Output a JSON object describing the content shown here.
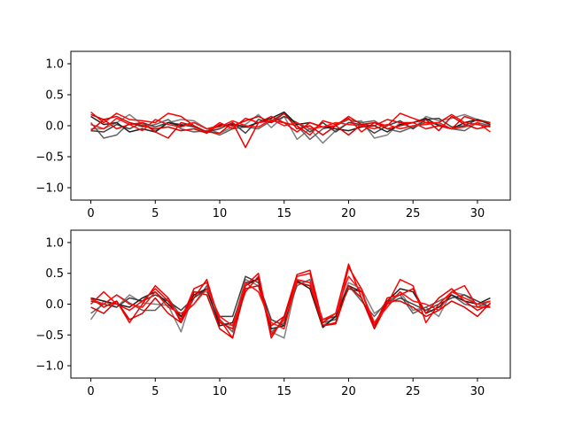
{
  "chart_data": [
    {
      "type": "line",
      "xlim": [
        -1.55,
        32.55
      ],
      "ylim": [
        -1.2,
        1.2
      ],
      "xticks": [
        0,
        5,
        10,
        15,
        20,
        25,
        30
      ],
      "xtick_labels": [
        "0",
        "5",
        "10",
        "15",
        "20",
        "25",
        "30"
      ],
      "yticks": [
        -1.0,
        -0.5,
        0.0,
        0.5,
        1.0
      ],
      "ytick_labels": [
        "−1.0",
        "−0.5",
        "0.0",
        "0.5",
        "1.0"
      ],
      "grid": false,
      "series": [
        {
          "color": "#808080",
          "values": [
            -0.05,
            -0.05,
            0.05,
            0.18,
            0.02,
            -0.08,
            0.05,
            0.1,
            0.08,
            -0.05,
            -0.12,
            -0.02,
            0.02,
            0.18,
            -0.03,
            0.15,
            -0.22,
            -0.05,
            -0.28,
            -0.08,
            0.05,
            0.08,
            -0.2,
            -0.15,
            0.05,
            -0.05,
            0.15,
            0.08,
            0.12,
            0.18,
            0.1,
            0.02
          ]
        },
        {
          "color": "#606060",
          "values": [
            0.05,
            -0.2,
            -0.15,
            0.05,
            -0.02,
            0.02,
            0.1,
            -0.05,
            -0.1,
            -0.08,
            -0.15,
            -0.05,
            -0.02,
            -0.05,
            0.08,
            0.2,
            0.0,
            -0.22,
            -0.05,
            0.0,
            0.1,
            0.05,
            0.08,
            -0.05,
            -0.1,
            -0.02,
            0.05,
            0.02,
            -0.05,
            -0.08,
            0.05,
            0.0
          ]
        },
        {
          "color": "#404040",
          "values": [
            -0.08,
            -0.1,
            0.02,
            -0.05,
            0.05,
            -0.02,
            0.05,
            0.02,
            -0.02,
            -0.1,
            -0.05,
            0.05,
            -0.12,
            0.1,
            0.05,
            0.15,
            0.05,
            -0.1,
            0.05,
            -0.1,
            0.05,
            0.02,
            -0.12,
            0.0,
            0.08,
            -0.05,
            0.1,
            0.12,
            -0.02,
            0.0,
            0.1,
            0.05
          ]
        },
        {
          "color": "#202020",
          "values": [
            0.15,
            0.02,
            0.05,
            -0.1,
            -0.05,
            -0.1,
            0.05,
            0.0,
            0.05,
            -0.05,
            0.0,
            0.02,
            -0.02,
            0.05,
            0.12,
            0.22,
            0.02,
            0.05,
            -0.02,
            -0.05,
            -0.08,
            -0.02,
            0.0,
            -0.1,
            0.02,
            0.05,
            0.12,
            0.0,
            -0.05,
            0.05,
            0.1,
            0.02
          ]
        },
        {
          "color": "#ff0000",
          "values": [
            0.22,
            0.05,
            0.2,
            0.1,
            0.08,
            0.05,
            0.2,
            0.15,
            0.0,
            -0.1,
            0.05,
            -0.05,
            0.12,
            0.05,
            0.08,
            0.05,
            0.0,
            -0.15,
            0.08,
            0.02,
            0.12,
            -0.1,
            0.05,
            0.0,
            0.2,
            0.12,
            0.05,
            0.05,
            0.18,
            0.05,
            0.02,
            -0.02
          ]
        },
        {
          "color": "#ee0000",
          "values": [
            -0.08,
            0.1,
            -0.05,
            0.02,
            0.05,
            -0.1,
            -0.2,
            0.05,
            0.0,
            -0.1,
            -0.12,
            0.05,
            -0.35,
            0.05,
            0.15,
            0.05,
            -0.1,
            0.05,
            -0.02,
            0.0,
            0.15,
            0.02,
            0.0,
            0.1,
            0.05,
            0.05,
            -0.05,
            0.0,
            -0.05,
            0.15,
            0.08,
            0.05
          ]
        },
        {
          "color": "#dd0000",
          "values": [
            0.18,
            0.1,
            0.15,
            0.05,
            0.0,
            -0.05,
            -0.02,
            -0.08,
            -0.05,
            -0.12,
            0.02,
            0.0,
            0.08,
            0.15,
            0.05,
            0.2,
            -0.05,
            0.0,
            -0.15,
            0.0,
            -0.15,
            0.02,
            0.05,
            -0.05,
            0.0,
            0.05,
            0.1,
            -0.08,
            0.15,
            0.02,
            -0.05,
            0.0
          ]
        },
        {
          "color": "#ff1010",
          "values": [
            0.02,
            -0.05,
            0.12,
            0.02,
            -0.08,
            0.1,
            0.02,
            -0.02,
            0.05,
            -0.05,
            -0.02,
            0.08,
            0.0,
            -0.02,
            0.1,
            0.0,
            0.05,
            -0.05,
            -0.02,
            0.05,
            0.02,
            0.0,
            -0.05,
            0.02,
            -0.05,
            0.0,
            0.02,
            0.05,
            -0.05,
            -0.02,
            0.05,
            -0.1
          ]
        }
      ]
    },
    {
      "type": "line",
      "xlim": [
        -1.55,
        32.55
      ],
      "ylim": [
        -1.2,
        1.2
      ],
      "xticks": [
        0,
        5,
        10,
        15,
        20,
        25,
        30
      ],
      "xtick_labels": [
        "0",
        "5",
        "10",
        "15",
        "20",
        "25",
        "30"
      ],
      "yticks": [
        -1.0,
        -0.5,
        0.0,
        0.5,
        1.0
      ],
      "ytick_labels": [
        "−1.0",
        "−0.5",
        "0.0",
        "0.5",
        "1.0"
      ],
      "grid": false,
      "series": [
        {
          "color": "#808080",
          "values": [
            -0.25,
            0.05,
            -0.05,
            0.15,
            0.02,
            0.0,
            -0.02,
            -0.45,
            0.2,
            0.2,
            -0.3,
            -0.35,
            0.4,
            0.3,
            -0.45,
            -0.55,
            0.38,
            0.35,
            -0.35,
            -0.2,
            0.35,
            0.25,
            -0.15,
            0.0,
            0.2,
            -0.1,
            -0.05,
            -0.2,
            0.2,
            0.15,
            0.0,
            -0.05
          ]
        },
        {
          "color": "#606060",
          "values": [
            -0.15,
            0.0,
            0.15,
            0.02,
            -0.1,
            -0.1,
            0.1,
            -0.2,
            0.0,
            0.3,
            -0.25,
            -0.45,
            0.35,
            0.4,
            -0.45,
            -0.3,
            0.3,
            0.4,
            -0.3,
            -0.25,
            0.3,
            0.05,
            -0.2,
            0.05,
            0.15,
            -0.15,
            -0.05,
            0.05,
            0.15,
            0.0,
            -0.05,
            0.05
          ]
        },
        {
          "color": "#404040",
          "values": [
            0.05,
            0.0,
            -0.05,
            0.1,
            0.05,
            0.15,
            0.05,
            -0.1,
            0.1,
            0.25,
            -0.2,
            -0.2,
            0.45,
            0.35,
            -0.25,
            -0.35,
            0.35,
            0.3,
            -0.25,
            -0.2,
            0.25,
            0.2,
            -0.3,
            0.0,
            0.1,
            0.0,
            -0.1,
            0.0,
            0.1,
            0.15,
            0.05,
            -0.05
          ]
        },
        {
          "color": "#202020",
          "values": [
            0.1,
            0.05,
            0.0,
            -0.05,
            0.1,
            0.2,
            0.0,
            -0.2,
            0.15,
            0.25,
            -0.35,
            -0.3,
            0.3,
            0.42,
            -0.4,
            -0.35,
            0.38,
            0.25,
            -0.38,
            -0.2,
            0.3,
            0.2,
            -0.35,
            0.05,
            0.25,
            0.2,
            -0.15,
            -0.05,
            0.15,
            0.05,
            0.0,
            0.1
          ]
        },
        {
          "color": "#ff0000",
          "values": [
            0.0,
            0.2,
            0.0,
            -0.1,
            0.05,
            0.25,
            0.05,
            -0.25,
            0.25,
            0.35,
            -0.25,
            -0.55,
            0.3,
            0.5,
            -0.5,
            -0.25,
            0.45,
            0.5,
            -0.35,
            -0.3,
            0.6,
            0.25,
            -0.4,
            0.0,
            0.4,
            0.3,
            -0.3,
            0.0,
            0.2,
            0.3,
            -0.05,
            -0.05
          ]
        },
        {
          "color": "#ee0000",
          "values": [
            0.1,
            -0.05,
            0.05,
            -0.3,
            0.0,
            0.3,
            0.1,
            -0.3,
            0.1,
            0.4,
            -0.3,
            -0.4,
            0.2,
            0.45,
            -0.55,
            -0.2,
            0.48,
            0.55,
            -0.3,
            -0.15,
            0.65,
            0.1,
            -0.35,
            0.1,
            0.15,
            0.25,
            -0.15,
            0.1,
            0.25,
            0.05,
            -0.1,
            0.0
          ]
        },
        {
          "color": "#dd0000",
          "values": [
            -0.05,
            -0.15,
            0.05,
            -0.25,
            -0.15,
            0.1,
            -0.15,
            -0.3,
            0.2,
            0.15,
            -0.4,
            -0.55,
            0.25,
            0.3,
            -0.35,
            -0.2,
            0.35,
            0.3,
            -0.35,
            -0.32,
            0.3,
            0.1,
            -0.4,
            0.05,
            0.05,
            -0.05,
            -0.2,
            -0.1,
            0.05,
            -0.05,
            -0.2,
            0.02
          ]
        },
        {
          "color": "#ff1010",
          "values": [
            0.08,
            0.0,
            0.15,
            0.0,
            -0.05,
            0.2,
            -0.05,
            -0.15,
            0.0,
            0.25,
            -0.2,
            -0.35,
            0.35,
            0.2,
            -0.3,
            -0.4,
            0.4,
            0.35,
            -0.25,
            -0.15,
            0.45,
            0.2,
            -0.3,
            -0.05,
            0.2,
            0.05,
            0.0,
            -0.1,
            0.2,
            0.1,
            0.0,
            0.05
          ]
        }
      ]
    }
  ]
}
